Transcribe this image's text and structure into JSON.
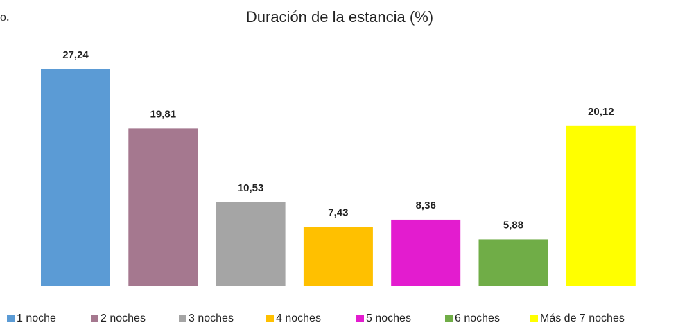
{
  "caption_fragment": "o.",
  "chart_data": {
    "type": "bar",
    "title": "Duración de la estancia (%)",
    "categories": [
      "1 noche",
      "2 noches",
      "3 noches",
      "4 noches",
      "5 noches",
      "6 noches",
      "Más de 7 noches"
    ],
    "values": [
      27.24,
      19.81,
      10.53,
      7.43,
      8.36,
      5.88,
      20.12
    ],
    "value_labels": [
      "27,24",
      "19,81",
      "10,53",
      "7,43",
      "8,36",
      "5,88",
      "20,12"
    ],
    "colors": [
      "#5b9bd5",
      "#a5788f",
      "#a5a5a5",
      "#ffc000",
      "#e31ccf",
      "#70ad47",
      "#ffff00"
    ],
    "legend": "bottom"
  }
}
